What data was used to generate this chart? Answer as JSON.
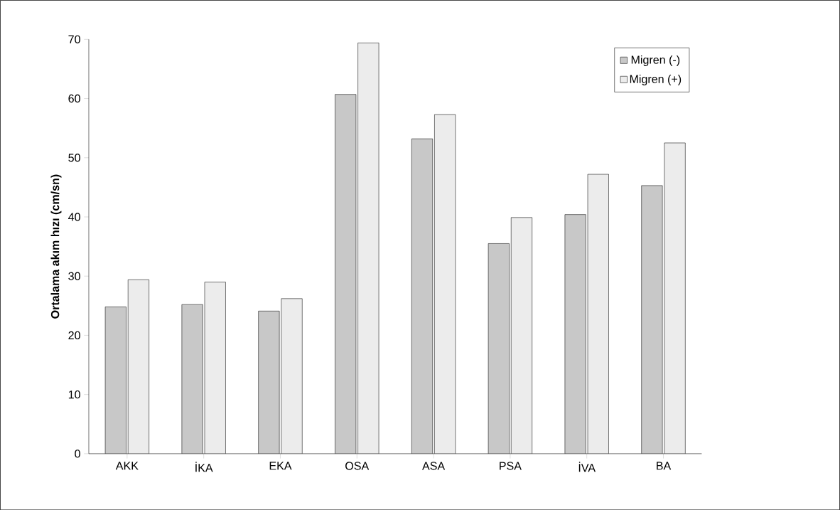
{
  "chart_data": {
    "type": "bar",
    "ylabel": "Ortalama akım hızı (cm/sn)",
    "categories": [
      "AKK",
      "İKA",
      "EKA",
      "OSA",
      "ASA",
      "PSA",
      "İVA",
      "BA"
    ],
    "series": [
      {
        "name": "Migren (-)",
        "color": "#c8c8c8",
        "values": [
          24.8,
          25.2,
          24.1,
          60.7,
          53.2,
          35.5,
          40.4,
          45.3
        ]
      },
      {
        "name": "Migren (+)",
        "color": "#ececec",
        "values": [
          29.4,
          29.0,
          26.2,
          69.4,
          57.3,
          39.9,
          47.2,
          52.5
        ]
      }
    ],
    "ylim": [
      0,
      70
    ],
    "yticks": [
      0,
      10,
      20,
      30,
      40,
      50,
      60,
      70
    ],
    "legend": "top right",
    "grid": false
  }
}
